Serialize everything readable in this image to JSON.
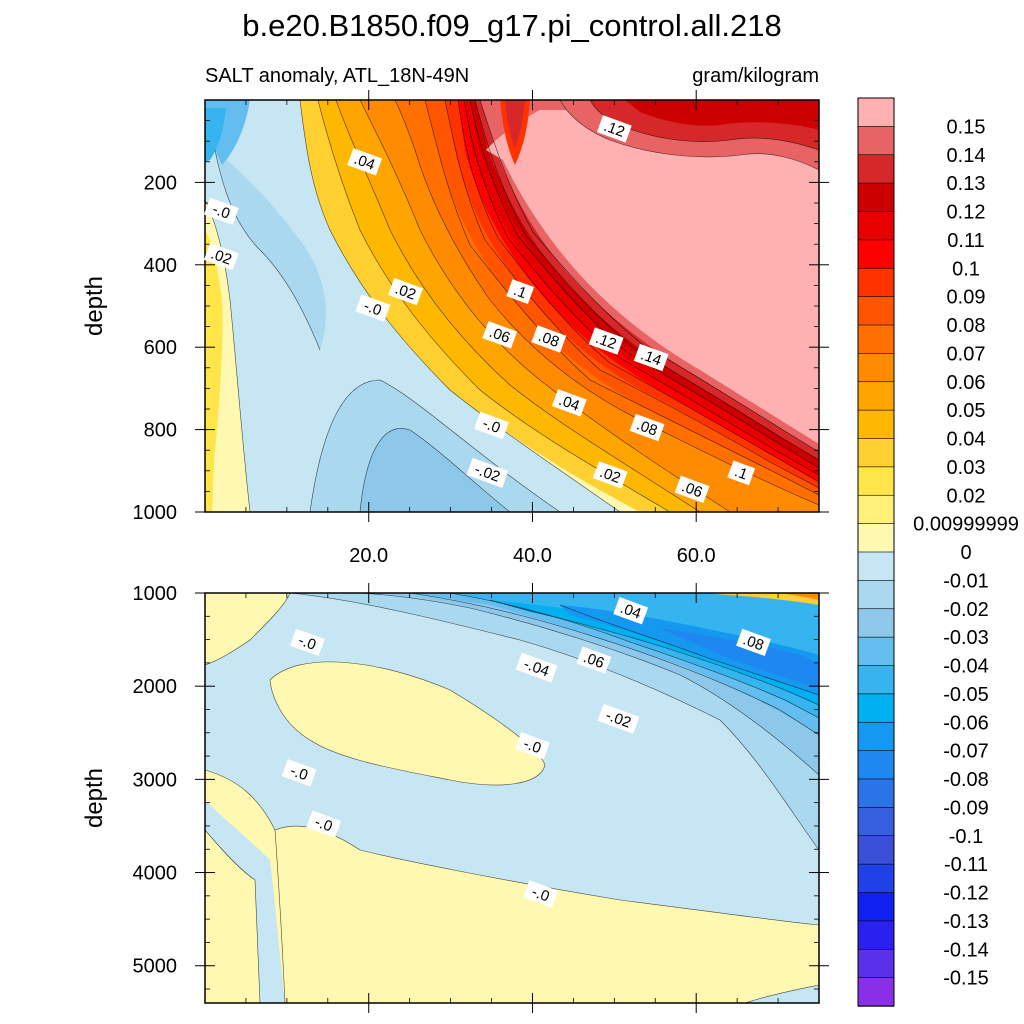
{
  "header": {
    "title": "b.e20.B1850.f09_g17.pi_control.all.218",
    "left_subtitle": "SALT anomaly, ATL_18N-49N",
    "right_subtitle": "gram/kilogram"
  },
  "chart_data": [
    {
      "type": "heatmap",
      "panel": "upper",
      "ylabel": "depth",
      "xlabel": "",
      "xlim": [
        0,
        75
      ],
      "ylim": [
        1000,
        0
      ],
      "y_reversed": true,
      "x_tick_labels": [
        {
          "value": 20,
          "label": "20.0"
        },
        {
          "value": 40,
          "label": "40.0"
        },
        {
          "value": 60,
          "label": "60.0"
        }
      ],
      "y_tick_labels": [
        {
          "value": 200,
          "label": "200"
        },
        {
          "value": 400,
          "label": "400"
        },
        {
          "value": 600,
          "label": "600"
        },
        {
          "value": 800,
          "label": "800"
        },
        {
          "value": 1000,
          "label": "1000"
        }
      ],
      "contour_labels": [
        {
          "text": ".12",
          "x": 50,
          "y": 70
        },
        {
          "text": ".04",
          "x": 19.5,
          "y": 150
        },
        {
          "text": "-.0",
          "x": 2,
          "y": 270
        },
        {
          "text": ".02",
          "x": 2,
          "y": 380
        },
        {
          "text": ".02",
          "x": 24.5,
          "y": 465
        },
        {
          "text": "-.0",
          "x": 20.5,
          "y": 505
        },
        {
          "text": ".1",
          "x": 38.5,
          "y": 465
        },
        {
          "text": ".06",
          "x": 36,
          "y": 570
        },
        {
          "text": ".08",
          "x": 42,
          "y": 580
        },
        {
          "text": ".12",
          "x": 49,
          "y": 585
        },
        {
          "text": ".14",
          "x": 54.5,
          "y": 625
        },
        {
          "text": ".04",
          "x": 44.5,
          "y": 735
        },
        {
          "text": "-.0",
          "x": 35,
          "y": 790
        },
        {
          "text": ".08",
          "x": 54,
          "y": 795
        },
        {
          "text": "-.02",
          "x": 34.5,
          "y": 905
        },
        {
          "text": ".02",
          "x": 49.5,
          "y": 910
        },
        {
          "text": ".06",
          "x": 59.5,
          "y": 945
        },
        {
          "text": ".1",
          "x": 65.5,
          "y": 905
        }
      ]
    },
    {
      "type": "heatmap",
      "panel": "lower",
      "ylabel": "depth",
      "xlabel": "",
      "xlim": [
        0,
        75
      ],
      "ylim": [
        5400,
        1000
      ],
      "y_reversed": true,
      "y_tick_labels": [
        {
          "value": 1000,
          "label": "1000"
        },
        {
          "value": 2000,
          "label": "2000"
        },
        {
          "value": 3000,
          "label": "3000"
        },
        {
          "value": 4000,
          "label": "4000"
        },
        {
          "value": 5000,
          "label": "5000"
        }
      ],
      "contour_labels": [
        {
          "text": ".04",
          "x": 52,
          "y": 1190
        },
        {
          "text": ".08",
          "x": 67,
          "y": 1530
        },
        {
          "text": "-.0",
          "x": 12.5,
          "y": 1530
        },
        {
          "text": ".06",
          "x": 47.5,
          "y": 1720
        },
        {
          "text": "-.04",
          "x": 40.5,
          "y": 1800
        },
        {
          "text": "-.02",
          "x": 50.5,
          "y": 2350
        },
        {
          "text": "-.0",
          "x": 40,
          "y": 2640
        },
        {
          "text": "-.0",
          "x": 11.5,
          "y": 2930
        },
        {
          "text": "-.0",
          "x": 14.5,
          "y": 3480
        },
        {
          "text": "-.0",
          "x": 41,
          "y": 4230
        }
      ]
    }
  ],
  "colorbar": {
    "labels": [
      "0.15",
      "0.14",
      "0.13",
      "0.12",
      "0.11",
      "0.1",
      "0.09",
      "0.08",
      "0.07",
      "0.06",
      "0.05",
      "0.04",
      "0.03",
      "0.02",
      "0.00999999",
      "0",
      "-0.01",
      "-0.02",
      "-0.03",
      "-0.04",
      "-0.05",
      "-0.06",
      "-0.07",
      "-0.08",
      "-0.09",
      "-0.1",
      "-0.11",
      "-0.12",
      "-0.13",
      "-0.14",
      "-0.15"
    ],
    "colors": [
      "#ffb0b0",
      "#e86464",
      "#d62828",
      "#cc0000",
      "#e60000",
      "#ff0000",
      "#ff3300",
      "#ff5500",
      "#ff7000",
      "#ff8c00",
      "#ffa500",
      "#ffb800",
      "#ffd030",
      "#ffe44a",
      "#fff07a",
      "#fff8b0",
      "#c6e6f4",
      "#aad8ef",
      "#8dc8ea",
      "#63bdef",
      "#36b4f0",
      "#00b0f0",
      "#1598f0",
      "#1e88f0",
      "#2a74e8",
      "#3660e0",
      "#3a50d8",
      "#2040e8",
      "#1020f0",
      "#2a20f0",
      "#5a30e8",
      "#8a2fe8"
    ]
  }
}
